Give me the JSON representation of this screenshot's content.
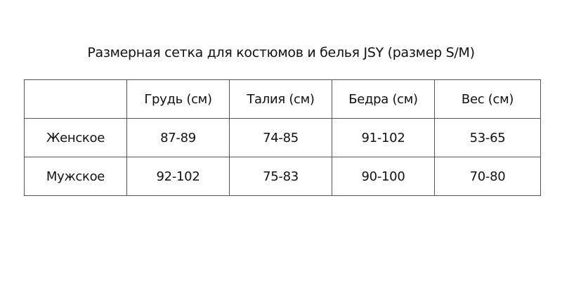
{
  "title": "Размерная сетка для костюмов и белья JSY (размер S/M)",
  "table": {
    "headers": [
      "",
      "Грудь (см)",
      "Талия (см)",
      "Бедра (см)",
      "Вес (см)"
    ],
    "rows": [
      [
        "Женское",
        "87-89",
        "74-85",
        "91-102",
        "53-65"
      ],
      [
        "Мужское",
        "92-102",
        "75-83",
        "90-100",
        "70-80"
      ]
    ]
  }
}
